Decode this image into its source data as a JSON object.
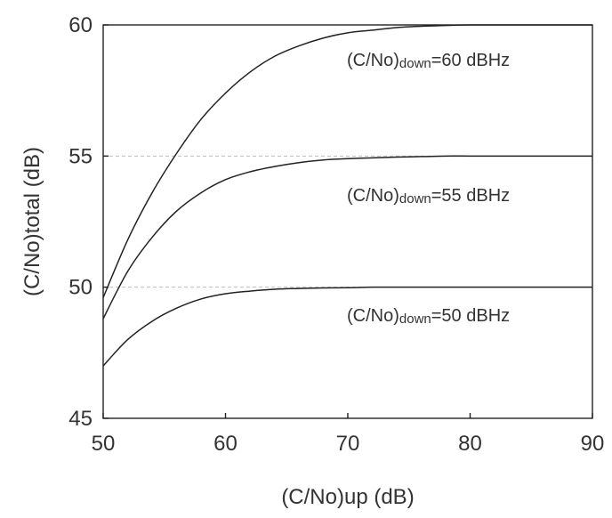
{
  "chart_data": {
    "type": "line",
    "title": "",
    "xlabel": "(C/No)up  (dB)",
    "ylabel": "(C/No)total  (dB)",
    "xlim": [
      50,
      90
    ],
    "ylim": [
      45,
      60
    ],
    "xticks": [
      50,
      60,
      70,
      80,
      90
    ],
    "yticks": [
      45,
      50,
      55,
      60
    ],
    "grid": "dashed horizontal lines at 50 and 55",
    "series": [
      {
        "label_main": "(C/No)",
        "label_sub": "down",
        "label_value": "=60 dBHz",
        "x": [
          50,
          52,
          54,
          56,
          58,
          60,
          62,
          64,
          66,
          68,
          70,
          72,
          74,
          76,
          78,
          80,
          82,
          84,
          86,
          88,
          90
        ],
        "y": [
          49.6,
          51.8,
          53.6,
          55.1,
          56.4,
          57.4,
          58.2,
          58.8,
          59.2,
          59.5,
          59.7,
          59.8,
          59.9,
          59.95,
          59.98,
          60.0,
          60.0,
          60.0,
          60.0,
          60.0,
          60.0
        ]
      },
      {
        "label_main": "(C/No)",
        "label_sub": "down",
        "label_value": "=55 dBHz",
        "x": [
          50,
          52,
          54,
          56,
          58,
          60,
          62,
          64,
          66,
          68,
          70,
          72,
          74,
          76,
          78,
          80,
          82,
          84,
          86,
          88,
          90
        ],
        "y": [
          48.8,
          50.6,
          51.9,
          52.9,
          53.6,
          54.1,
          54.4,
          54.6,
          54.75,
          54.85,
          54.9,
          54.93,
          54.96,
          54.98,
          55.0,
          55.0,
          55.0,
          55.0,
          55.0,
          55.0,
          55.0
        ]
      },
      {
        "label_main": "(C/No)",
        "label_sub": "down",
        "label_value": "=50 dBHz",
        "x": [
          50,
          52,
          54,
          56,
          58,
          60,
          62,
          64,
          66,
          68,
          70,
          72,
          74,
          76,
          78,
          80,
          82,
          84,
          86,
          88,
          90
        ],
        "y": [
          47.0,
          48.0,
          48.7,
          49.2,
          49.55,
          49.75,
          49.85,
          49.92,
          49.95,
          49.97,
          49.98,
          50.0,
          50.0,
          50.0,
          50.0,
          50.0,
          50.0,
          50.0,
          50.0,
          50.0,
          50.0
        ]
      }
    ]
  }
}
